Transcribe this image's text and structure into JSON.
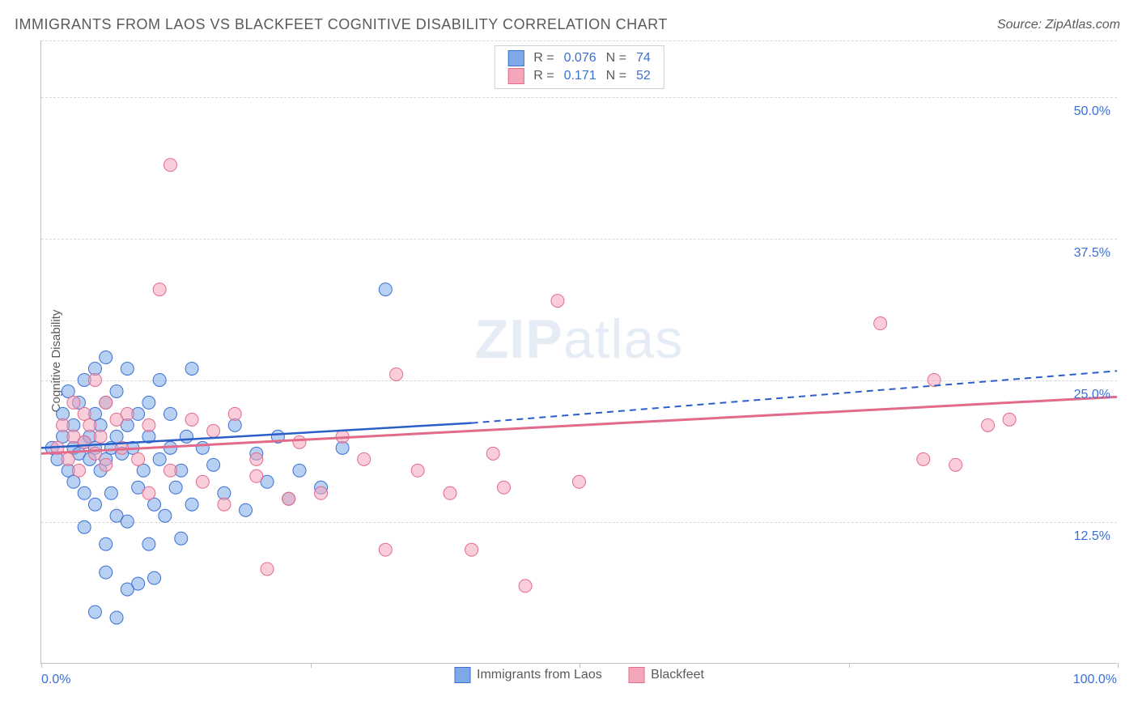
{
  "title": "IMMIGRANTS FROM LAOS VS BLACKFEET COGNITIVE DISABILITY CORRELATION CHART",
  "source": "Source: ZipAtlas.com",
  "ylabel": "Cognitive Disability",
  "watermark_bold": "ZIP",
  "watermark_rest": "atlas",
  "chart": {
    "type": "scatter",
    "background_color": "#ffffff",
    "grid_color": "#d8d8d8",
    "axis_color": "#c0c0c0",
    "tick_label_color": "#3b6fd6",
    "label_color": "#5a5a5a",
    "xlim": [
      0,
      100
    ],
    "ylim": [
      0,
      55
    ],
    "x_ticks": [
      0,
      25,
      50,
      75,
      100
    ],
    "x_tick_labels": [
      "0.0%",
      "",
      "",
      "",
      "100.0%"
    ],
    "y_ticks": [
      12.5,
      25.0,
      37.5,
      50.0
    ],
    "y_tick_labels": [
      "12.5%",
      "25.0%",
      "37.5%",
      "50.0%"
    ],
    "marker_radius": 8,
    "marker_opacity": 0.55,
    "series": [
      {
        "name": "Immigrants from Laos",
        "fill_color": "#7ea9e6",
        "stroke_color": "#3b6fd6",
        "line_color": "#2a5fc9",
        "r_value": "0.076",
        "n_value": "74",
        "trend_solid": {
          "x1": 0,
          "y1": 19.0,
          "x2": 40,
          "y2": 21.2
        },
        "trend_dashed": {
          "x1": 40,
          "y1": 21.2,
          "x2": 100,
          "y2": 25.8
        },
        "trend_width": 2.5,
        "points": [
          [
            1,
            19
          ],
          [
            1.5,
            18
          ],
          [
            2,
            20
          ],
          [
            2,
            22
          ],
          [
            2.5,
            17
          ],
          [
            2.5,
            24
          ],
          [
            3,
            19
          ],
          [
            3,
            21
          ],
          [
            3,
            16
          ],
          [
            3.5,
            18.5
          ],
          [
            3.5,
            23
          ],
          [
            4,
            19.5
          ],
          [
            4,
            25
          ],
          [
            4,
            15
          ],
          [
            4,
            12
          ],
          [
            4.5,
            18
          ],
          [
            4.5,
            20
          ],
          [
            5,
            19
          ],
          [
            5,
            22
          ],
          [
            5,
            26
          ],
          [
            5,
            14
          ],
          [
            5.5,
            17
          ],
          [
            5.5,
            21
          ],
          [
            6,
            18
          ],
          [
            6,
            23
          ],
          [
            6,
            27
          ],
          [
            6,
            10.5
          ],
          [
            6.5,
            19
          ],
          [
            6.5,
            15
          ],
          [
            7,
            20
          ],
          [
            7,
            24
          ],
          [
            7,
            13
          ],
          [
            7.5,
            18.5
          ],
          [
            8,
            21
          ],
          [
            8,
            26
          ],
          [
            8,
            12.5
          ],
          [
            8.5,
            19
          ],
          [
            9,
            22
          ],
          [
            9,
            15.5
          ],
          [
            9,
            7
          ],
          [
            9.5,
            17
          ],
          [
            10,
            20
          ],
          [
            10,
            23
          ],
          [
            10,
            10.5
          ],
          [
            10.5,
            14
          ],
          [
            11,
            18
          ],
          [
            11,
            25
          ],
          [
            11.5,
            13
          ],
          [
            12,
            19
          ],
          [
            12,
            22
          ],
          [
            12.5,
            15.5
          ],
          [
            13,
            17
          ],
          [
            13.5,
            20
          ],
          [
            14,
            14
          ],
          [
            14,
            26
          ],
          [
            5,
            4.5
          ],
          [
            7,
            4
          ],
          [
            8,
            6.5
          ],
          [
            10.5,
            7.5
          ],
          [
            6,
            8
          ],
          [
            13,
            11
          ],
          [
            15,
            19
          ],
          [
            16,
            17.5
          ],
          [
            17,
            15
          ],
          [
            18,
            21
          ],
          [
            19,
            13.5
          ],
          [
            20,
            18.5
          ],
          [
            21,
            16
          ],
          [
            22,
            20
          ],
          [
            23,
            14.5
          ],
          [
            24,
            17
          ],
          [
            26,
            15.5
          ],
          [
            28,
            19
          ],
          [
            32,
            33
          ]
        ]
      },
      {
        "name": "Blackfeet",
        "fill_color": "#f4a6bb",
        "stroke_color": "#e26a8a",
        "line_color": "#e26a8a",
        "r_value": "0.171",
        "n_value": "52",
        "trend_solid": {
          "x1": 0,
          "y1": 18.5,
          "x2": 100,
          "y2": 23.5
        },
        "trend_dashed": null,
        "trend_width": 3,
        "points": [
          [
            1.5,
            19
          ],
          [
            2,
            21
          ],
          [
            2.5,
            18
          ],
          [
            3,
            20
          ],
          [
            3,
            23
          ],
          [
            3.5,
            17
          ],
          [
            4,
            19.5
          ],
          [
            4,
            22
          ],
          [
            4.5,
            21
          ],
          [
            5,
            18.5
          ],
          [
            5,
            25
          ],
          [
            5.5,
            20
          ],
          [
            6,
            17.5
          ],
          [
            6,
            23
          ],
          [
            7,
            21.5
          ],
          [
            7.5,
            19
          ],
          [
            8,
            22
          ],
          [
            9,
            18
          ],
          [
            10,
            21
          ],
          [
            10,
            15
          ],
          [
            11,
            33
          ],
          [
            12,
            17
          ],
          [
            12,
            44
          ],
          [
            14,
            21.5
          ],
          [
            15,
            16
          ],
          [
            16,
            20.5
          ],
          [
            17,
            14
          ],
          [
            18,
            22
          ],
          [
            20,
            18
          ],
          [
            20,
            16.5
          ],
          [
            21,
            8.3
          ],
          [
            23,
            14.5
          ],
          [
            24,
            19.5
          ],
          [
            26,
            15
          ],
          [
            28,
            20
          ],
          [
            30,
            18
          ],
          [
            32,
            10
          ],
          [
            33,
            25.5
          ],
          [
            35,
            17
          ],
          [
            38,
            15
          ],
          [
            40,
            10
          ],
          [
            42,
            18.5
          ],
          [
            43,
            15.5
          ],
          [
            45,
            6.8
          ],
          [
            48,
            32
          ],
          [
            50,
            16
          ],
          [
            78,
            30
          ],
          [
            82,
            18
          ],
          [
            83,
            25
          ],
          [
            85,
            17.5
          ],
          [
            88,
            21
          ],
          [
            90,
            21.5
          ]
        ]
      }
    ]
  },
  "legend_top": {
    "r_label": "R =",
    "n_label": "N ="
  }
}
